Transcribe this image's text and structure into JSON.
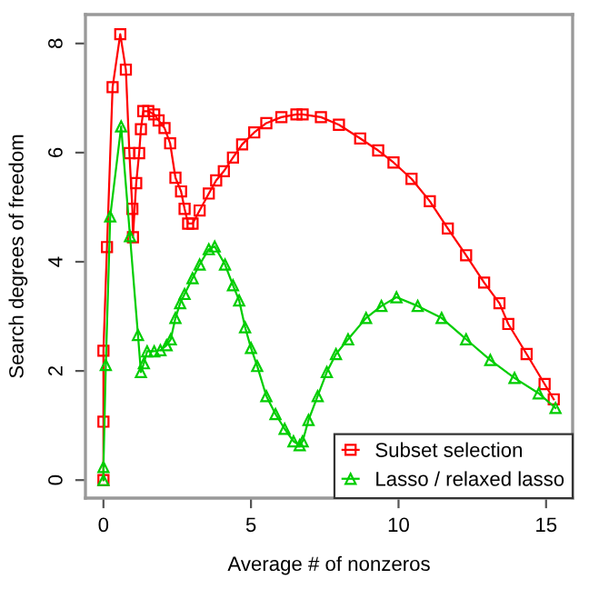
{
  "chart_data": {
    "type": "line",
    "xlabel": "Average # of nonzeros",
    "ylabel": "Search degrees of freedom",
    "xlim": [
      -0.61,
      15.9
    ],
    "ylim": [
      -0.33,
      8.53
    ],
    "xticks": [
      0,
      5,
      10,
      15
    ],
    "yticks": [
      0,
      2,
      4,
      6,
      8
    ],
    "grid": false,
    "legend": "bottom right",
    "line_style": "solid",
    "series": [
      {
        "name": "Subset selection",
        "color": "#ff0000",
        "marker": "square",
        "x": [
          0.0,
          0.0,
          0.0,
          0.12,
          0.31,
          0.57,
          0.76,
          0.88,
          0.98,
          1.0,
          1.11,
          1.21,
          1.27,
          1.35,
          1.52,
          1.72,
          1.87,
          2.07,
          2.26,
          2.44,
          2.63,
          2.75,
          2.87,
          3.02,
          3.26,
          3.57,
          3.82,
          4.08,
          4.39,
          4.7,
          5.11,
          5.52,
          6.03,
          6.54,
          6.75,
          7.37,
          7.98,
          8.7,
          9.31,
          9.83,
          10.44,
          11.06,
          11.67,
          12.29,
          12.9,
          13.42,
          13.72,
          14.34,
          14.95,
          15.26
        ],
        "values": [
          0.0,
          1.07,
          2.37,
          4.27,
          7.2,
          8.17,
          7.52,
          5.99,
          4.97,
          4.45,
          5.44,
          5.99,
          6.43,
          6.76,
          6.76,
          6.7,
          6.59,
          6.45,
          6.17,
          5.54,
          5.29,
          4.97,
          4.7,
          4.7,
          4.94,
          5.25,
          5.49,
          5.66,
          5.91,
          6.15,
          6.37,
          6.54,
          6.65,
          6.7,
          6.7,
          6.65,
          6.51,
          6.26,
          6.04,
          5.82,
          5.52,
          5.11,
          4.61,
          4.12,
          3.62,
          3.24,
          2.86,
          2.31,
          1.76,
          1.48
        ]
      },
      {
        "name": "Lasso / relaxed lasso",
        "color": "#00cd00",
        "marker": "triangle",
        "x": [
          0.0,
          0.0,
          0.08,
          0.23,
          0.6,
          0.9,
          1.17,
          1.27,
          1.37,
          1.48,
          1.72,
          1.93,
          2.14,
          2.28,
          2.44,
          2.6,
          2.75,
          3.02,
          3.26,
          3.57,
          3.77,
          4.12,
          4.39,
          4.6,
          4.8,
          5.0,
          5.21,
          5.52,
          5.83,
          6.14,
          6.44,
          6.65,
          6.75,
          6.95,
          7.26,
          7.57,
          7.88,
          8.29,
          8.9,
          9.42,
          9.93,
          10.65,
          11.46,
          12.29,
          13.11,
          13.93,
          14.75,
          15.32
        ],
        "values": [
          0.0,
          0.24,
          2.11,
          4.83,
          6.48,
          4.47,
          2.66,
          1.98,
          2.14,
          2.36,
          2.36,
          2.38,
          2.47,
          2.58,
          2.97,
          3.24,
          3.41,
          3.7,
          3.95,
          4.23,
          4.28,
          3.95,
          3.57,
          3.29,
          2.8,
          2.42,
          2.09,
          1.54,
          1.21,
          0.94,
          0.71,
          0.64,
          0.71,
          1.1,
          1.54,
          1.98,
          2.31,
          2.58,
          2.97,
          3.19,
          3.35,
          3.19,
          2.97,
          2.58,
          2.2,
          1.87,
          1.59,
          1.32
        ]
      }
    ]
  }
}
